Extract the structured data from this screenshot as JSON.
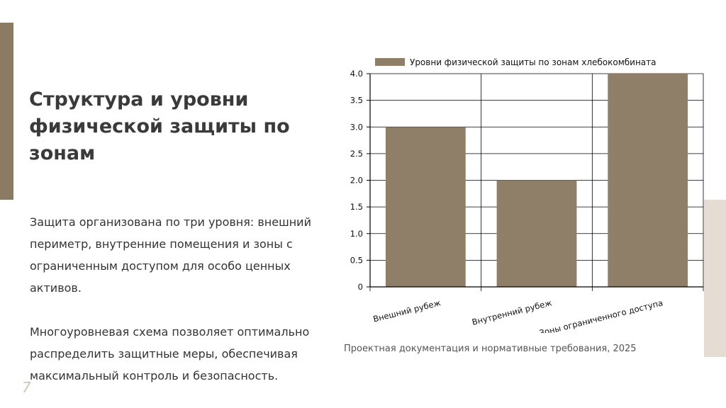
{
  "slide": {
    "title": "Структура и уровни физической защиты по зонам",
    "paragraphs": [
      "Защита организована по три уровня: внешний периметр, внутренние помещения и зоны с ограниченным доступом для особо ценных активов.",
      "Многоуровневая схема позволяет оптимально распределить защитные меры, обеспечивая максимальный контроль и безопасность."
    ],
    "page_number": "7",
    "source": "Проектная документация и нормативные требования, 2025"
  },
  "colors": {
    "accent": "#8c7b63",
    "bar": "#8f7f69",
    "decor": "#e5ddd3"
  },
  "chart_data": {
    "type": "bar",
    "categories": [
      "Внешний рубеж",
      "Внутренний рубеж",
      "Зоны ограниченного доступа"
    ],
    "series": [
      {
        "name": "Уровни физической защиты по зонам хлебокомбината",
        "values": [
          3,
          2,
          4
        ]
      }
    ],
    "yticks": [
      "0",
      "0.5",
      "1.0",
      "1.5",
      "2.0",
      "2.5",
      "3.0",
      "3.5",
      "4.0"
    ],
    "ylim": [
      0,
      4
    ],
    "grid": true,
    "legend": "top",
    "xlabel": "",
    "ylabel": ""
  }
}
